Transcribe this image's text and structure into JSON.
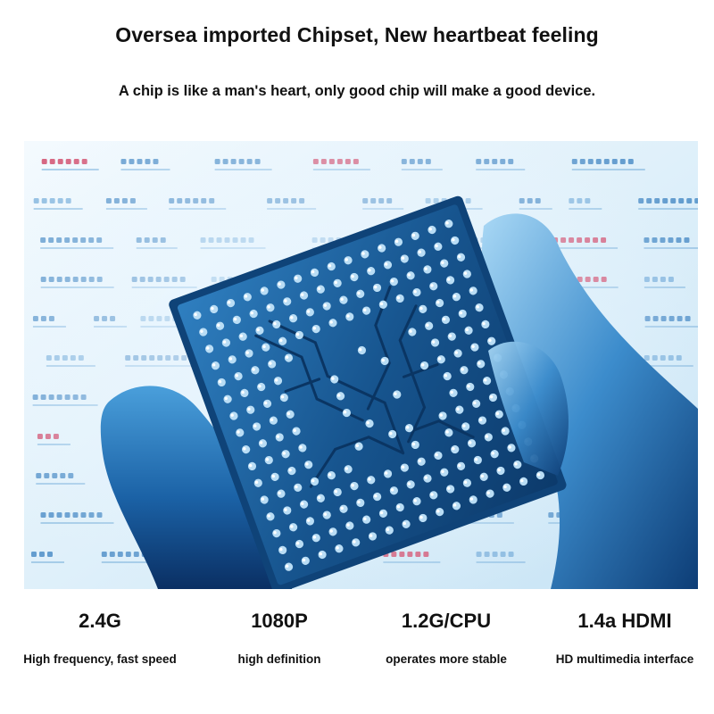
{
  "headline": "Oversea imported Chipset, New heartbeat feeling",
  "subline": "A chip is like a man's heart, only good chip will make a good device.",
  "image": {
    "icon": "chip-in-hand-icon"
  },
  "features": [
    {
      "value": "2.4G",
      "desc": "High frequency, fast speed"
    },
    {
      "value": "1080P",
      "desc": "high definition"
    },
    {
      "value": "1.2G/CPU",
      "desc": "operates more stable"
    },
    {
      "value": "1.4a HDMI",
      "desc": "HD multimedia interface"
    }
  ],
  "colors": {
    "text": "#111111",
    "background": "#ffffff",
    "chip_blue": "#1f6fae",
    "deep_blue": "#0b3f7a",
    "light_blue": "#bfe0f5"
  }
}
